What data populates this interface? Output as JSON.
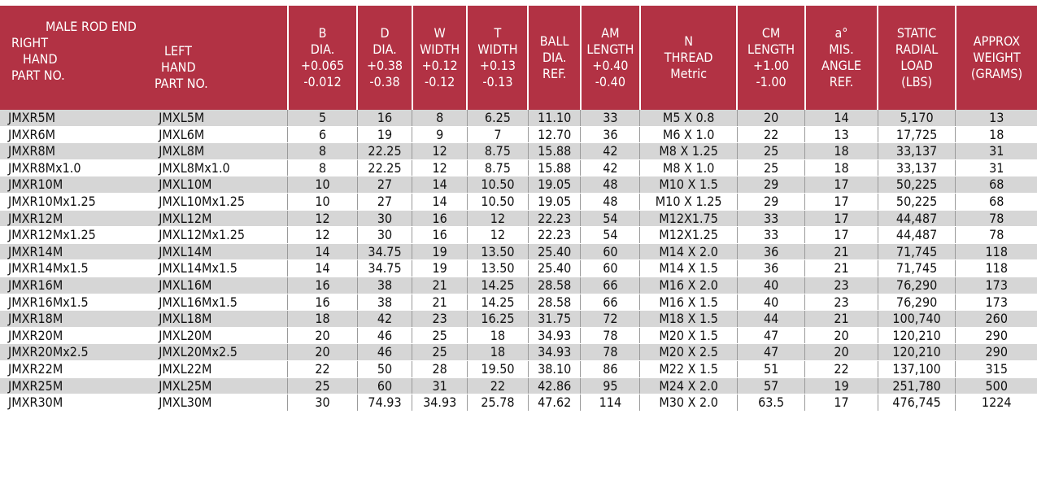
{
  "header": {
    "part_no_title": "MALE ROD END",
    "right_hand": [
      "RIGHT",
      "HAND",
      "PART NO."
    ],
    "left_hand": [
      "LEFT",
      "HAND",
      "PART NO."
    ],
    "columns": [
      [
        "B",
        "DIA.",
        "+0.065",
        "-0.012"
      ],
      [
        "D",
        "DIA.",
        "+0.38",
        "-0.38"
      ],
      [
        "W",
        "WIDTH",
        "+0.12",
        "-0.12"
      ],
      [
        "T",
        "WIDTH",
        "+0.13",
        "-0.13"
      ],
      [
        "BALL",
        "DIA.",
        "REF."
      ],
      [
        "AM",
        "LENGTH",
        "+0.40",
        "-0.40"
      ],
      [
        "N",
        "THREAD",
        "Metric"
      ],
      [
        "CM",
        "LENGTH",
        "+1.00",
        "-1.00"
      ],
      [
        "a°",
        "MIS.",
        "ANGLE",
        "REF."
      ],
      [
        "STATIC",
        "RADIAL",
        "LOAD",
        "(LBS)"
      ],
      [
        "APPROX",
        "WEIGHT",
        "(GRAMS)"
      ]
    ]
  },
  "rows": [
    [
      "JMXR5M",
      "JMXL5M",
      "5",
      "16",
      "8",
      "6.25",
      "11.10",
      "33",
      "M5 X 0.8",
      "20",
      "14",
      "5,170",
      "13"
    ],
    [
      "JMXR6M",
      "JMXL6M",
      "6",
      "19",
      "9",
      "7",
      "12.70",
      "36",
      "M6 X 1.0",
      "22",
      "13",
      "17,725",
      "18"
    ],
    [
      "JMXR8M",
      "JMXL8M",
      "8",
      "22.25",
      "12",
      "8.75",
      "15.88",
      "42",
      "M8 X 1.25",
      "25",
      "18",
      "33,137",
      "31"
    ],
    [
      "JMXR8Mx1.0",
      "JMXL8Mx1.0",
      "8",
      "22.25",
      "12",
      "8.75",
      "15.88",
      "42",
      "M8 X 1.0",
      "25",
      "18",
      "33,137",
      "31"
    ],
    [
      "JMXR10M",
      "JMXL10M",
      "10",
      "27",
      "14",
      "10.50",
      "19.05",
      "48",
      "M10 X 1.5",
      "29",
      "17",
      "50,225",
      "68"
    ],
    [
      "JMXR10Mx1.25",
      "JMXL10Mx1.25",
      "10",
      "27",
      "14",
      "10.50",
      "19.05",
      "48",
      "M10 X 1.25",
      "29",
      "17",
      "50,225",
      "68"
    ],
    [
      "JMXR12M",
      "JMXL12M",
      "12",
      "30",
      "16",
      "12",
      "22.23",
      "54",
      "M12X1.75",
      "33",
      "17",
      "44,487",
      "78"
    ],
    [
      "JMXR12Mx1.25",
      "JMXL12Mx1.25",
      "12",
      "30",
      "16",
      "12",
      "22.23",
      "54",
      "M12X1.25",
      "33",
      "17",
      "44,487",
      "78"
    ],
    [
      "JMXR14M",
      "JMXL14M",
      "14",
      "34.75",
      "19",
      "13.50",
      "25.40",
      "60",
      "M14 X 2.0",
      "36",
      "21",
      "71,745",
      "118"
    ],
    [
      "JMXR14Mx1.5",
      "JMXL14Mx1.5",
      "14",
      "34.75",
      "19",
      "13.50",
      "25.40",
      "60",
      "M14 X 1.5",
      "36",
      "21",
      "71,745",
      "118"
    ],
    [
      "JMXR16M",
      "JMXL16M",
      "16",
      "38",
      "21",
      "14.25",
      "28.58",
      "66",
      "M16 X 2.0",
      "40",
      "23",
      "76,290",
      "173"
    ],
    [
      "JMXR16Mx1.5",
      "JMXL16Mx1.5",
      "16",
      "38",
      "21",
      "14.25",
      "28.58",
      "66",
      "M16 X 1.5",
      "40",
      "23",
      "76,290",
      "173"
    ],
    [
      "JMXR18M",
      "JMXL18M",
      "18",
      "42",
      "23",
      "16.25",
      "31.75",
      "72",
      "M18 X 1.5",
      "44",
      "21",
      "100,740",
      "260"
    ],
    [
      "JMXR20M",
      "JMXL20M",
      "20",
      "46",
      "25",
      "18",
      "34.93",
      "78",
      "M20 X 1.5",
      "47",
      "20",
      "120,210",
      "290"
    ],
    [
      "JMXR20Mx2.5",
      "JMXL20Mx2.5",
      "20",
      "46",
      "25",
      "18",
      "34.93",
      "78",
      "M20 X 2.5",
      "47",
      "20",
      "120,210",
      "290"
    ],
    [
      "JMXR22M",
      "JMXL22M",
      "22",
      "50",
      "28",
      "19.50",
      "38.10",
      "86",
      "M22 X 1.5",
      "51",
      "22",
      "137,100",
      "315"
    ],
    [
      "JMXR25M",
      "JMXL25M",
      "25",
      "60",
      "31",
      "22",
      "42.86",
      "95",
      "M24 X 2.0",
      "57",
      "19",
      "251,780",
      "500"
    ],
    [
      "JMXR30M",
      "JMXL30M",
      "30",
      "74.93",
      "34.93",
      "25.78",
      "47.62",
      "114",
      "M30 X 2.0",
      "63.5",
      "17",
      "476,745",
      "1224"
    ]
  ],
  "colors": {
    "header_bg": "#b23244",
    "stripe": "#d6d6d6"
  }
}
